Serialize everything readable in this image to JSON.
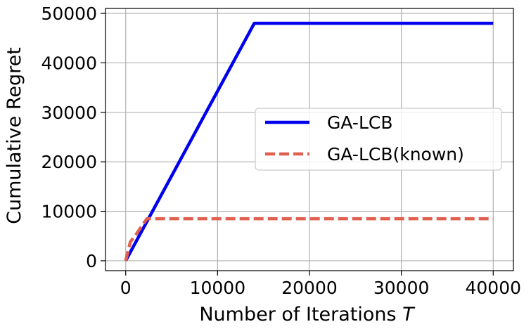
{
  "chart_data": {
    "type": "line",
    "title": "",
    "xlabel": "Number of Iterations",
    "xlabel_var": "T",
    "ylabel": "Cumulative Regret",
    "xlim": [
      -2200,
      42200
    ],
    "ylim": [
      -2000,
      51000
    ],
    "xticks": [
      0,
      10000,
      20000,
      30000,
      40000
    ],
    "xtick_labels": [
      "0",
      "10000",
      "20000",
      "30000",
      "40000"
    ],
    "yticks": [
      0,
      10000,
      20000,
      30000,
      40000,
      50000
    ],
    "ytick_labels": [
      "0",
      "10000",
      "20000",
      "30000",
      "40000",
      "50000"
    ],
    "grid": true,
    "legend_position": "center-right",
    "series": [
      {
        "name": "GA-LCB",
        "color": "#0000ee",
        "style": "solid",
        "x": [
          0,
          14000,
          40000
        ],
        "y": [
          0,
          48000,
          48000
        ]
      },
      {
        "name": "GA-LCB(known)",
        "color": "#e06050",
        "style": "dashed",
        "x": [
          0,
          500,
          1200,
          2300,
          40000
        ],
        "y": [
          0,
          3800,
          5500,
          8500,
          8500
        ]
      }
    ]
  }
}
